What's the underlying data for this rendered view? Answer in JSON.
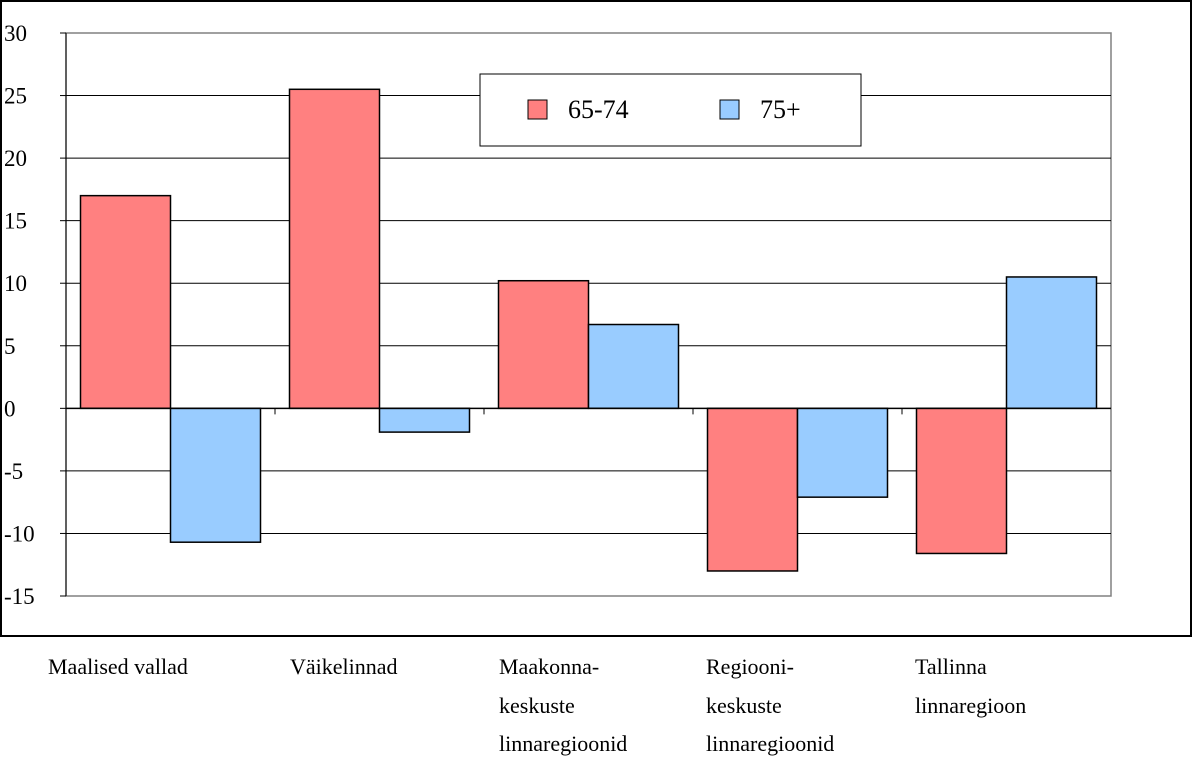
{
  "chart_data": {
    "type": "bar",
    "categories": [
      [
        "Maalised vallad"
      ],
      [
        "Väikelinnad"
      ],
      [
        "Maakonna-",
        "keskuste",
        "linnaregioonid"
      ],
      [
        "Regiooni-",
        "keskuste",
        "linnaregioonid"
      ],
      [
        "Tallinna",
        "linnaregioon"
      ]
    ],
    "series": [
      {
        "name": "65-74",
        "values": [
          17,
          25.5,
          10.2,
          -13,
          -11.6
        ],
        "color": "#ff8080"
      },
      {
        "name": "75+",
        "values": [
          -10.7,
          -1.9,
          6.7,
          -7.1,
          10.5
        ],
        "color": "#99ccff"
      }
    ],
    "yticks": [
      30,
      25,
      20,
      15,
      10,
      5,
      0,
      -5,
      -10,
      -15
    ],
    "ylim": [
      -15,
      30
    ],
    "grid": true,
    "legend_position": "top-center",
    "title": "",
    "xlabel": "",
    "ylabel": ""
  }
}
